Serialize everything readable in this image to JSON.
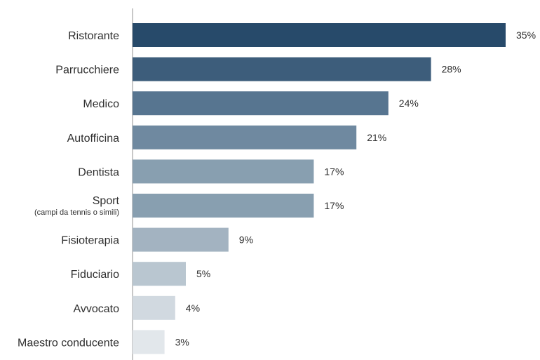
{
  "chart_data": {
    "type": "bar",
    "orientation": "horizontal",
    "categories": [
      "Ristorante",
      "Parrucchiere",
      "Medico",
      "Autofficina",
      "Dentista",
      "Sport",
      "Fisioterapia",
      "Fiduciario",
      "Avvocato",
      "Maestro conducente"
    ],
    "category_sublabels": [
      "",
      "",
      "",
      "",
      "",
      "(campi da tennis o simili)",
      "",
      "",
      "",
      ""
    ],
    "values": [
      35,
      28,
      24,
      21,
      17,
      17,
      9,
      5,
      4,
      3
    ],
    "value_labels": [
      "35%",
      "28%",
      "24%",
      "21%",
      "17%",
      "17%",
      "9%",
      "5%",
      "4%",
      "3%"
    ],
    "bar_colors": [
      "#274a6a",
      "#3d5d7b",
      "#577590",
      "#6f89a0",
      "#889fb0",
      "#889fb0",
      "#a3b3c1",
      "#b9c6d0",
      "#d1d9e0",
      "#e2e7eb"
    ],
    "xlim": [
      0,
      35
    ],
    "grid": false,
    "legend": "none"
  }
}
